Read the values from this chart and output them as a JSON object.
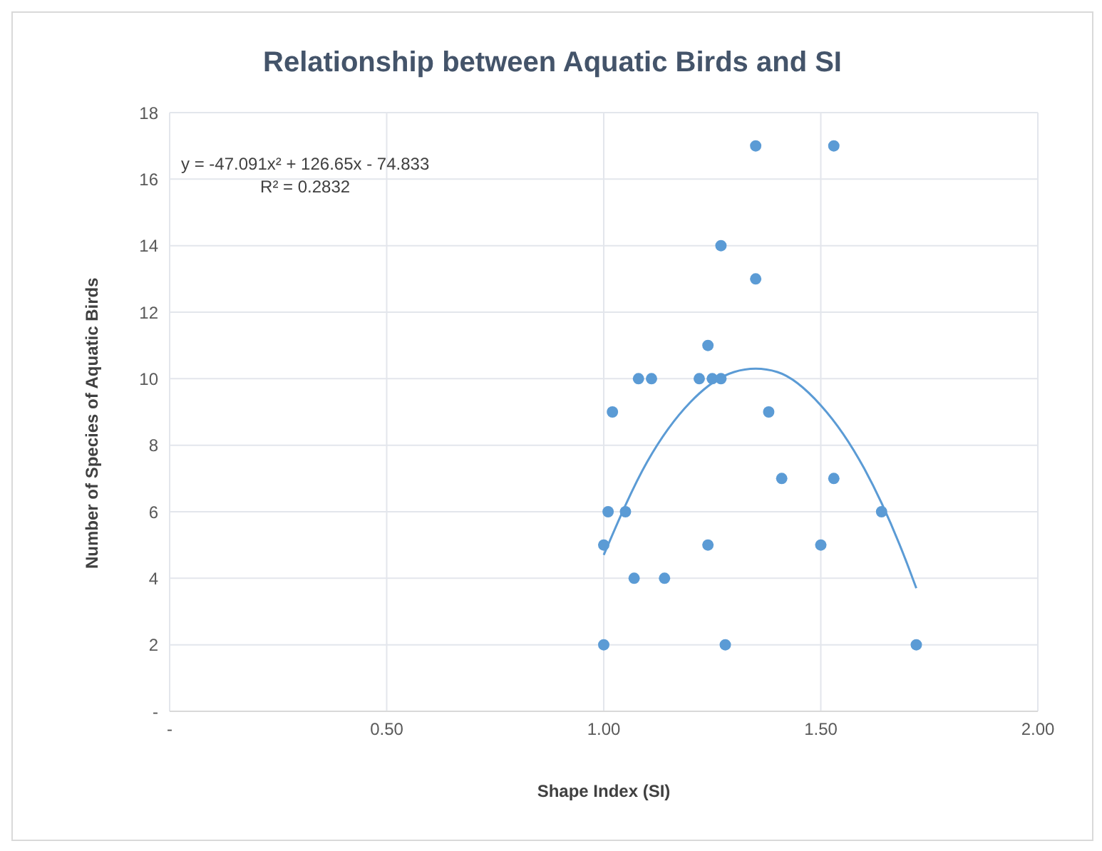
{
  "chart_data": {
    "type": "scatter",
    "title": "Relationship between Aquatic Birds and SI",
    "xlabel": "Shape Index (SI)",
    "ylabel": "Number of Species of Aquatic Birds",
    "annotations": [
      "y = -47.091x² + 126.65x - 74.833",
      "R² = 0.2832"
    ],
    "series": [
      {
        "color": "#5b9bd5",
        "marker": "circle",
        "x": [
          1.35,
          1.53,
          1.27,
          1.35,
          1.24,
          1.08,
          1.11,
          1.22,
          1.25,
          1.27,
          1.02,
          1.38,
          1.41,
          1.53,
          1.01,
          1.05,
          1.64,
          1.0,
          1.24,
          1.5,
          1.07,
          1.14,
          1.0,
          1.28,
          1.72
        ],
        "values": [
          17,
          17,
          14,
          13,
          11,
          10,
          10,
          10,
          10,
          10,
          9,
          9,
          7,
          7,
          6,
          6,
          6,
          5,
          5,
          5,
          4,
          4,
          2,
          2,
          2
        ]
      },
      {
        "type": "line",
        "color": "#5b9bd5",
        "marker": "none",
        "x": [
          1.0,
          1.1,
          1.2,
          1.3,
          1.35,
          1.4,
          1.5,
          1.6,
          1.7,
          1.72
        ],
        "values": [
          4.7,
          7.5,
          9.3,
          10.2,
          10.3,
          10.2,
          9.2,
          7.3,
          4.4,
          3.7
        ]
      }
    ],
    "xlim": [
      0,
      2
    ],
    "xticks": [
      {
        "value": 0,
        "label": "-"
      },
      {
        "value": 0.5,
        "label": "0.50"
      },
      {
        "value": 1,
        "label": "1.00"
      },
      {
        "value": 1.5,
        "label": "1.50"
      },
      {
        "value": 2,
        "label": "2.00"
      }
    ],
    "ylim": [
      0,
      18
    ],
    "yticks": [
      {
        "value": 0,
        "label": "-"
      },
      2,
      4,
      6,
      8,
      10,
      12,
      14,
      16,
      18
    ],
    "grid": true
  }
}
